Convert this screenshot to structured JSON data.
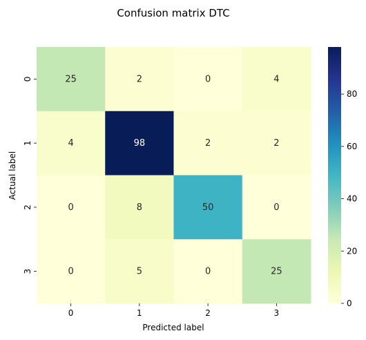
{
  "chart_data": {
    "type": "heatmap",
    "title": "Confusion matrix DTC",
    "xlabel": "Predicted label",
    "ylabel": "Actual label",
    "x_categories": [
      "0",
      "1",
      "2",
      "3"
    ],
    "y_categories": [
      "0",
      "1",
      "2",
      "3"
    ],
    "values": [
      [
        25,
        2,
        0,
        4
      ],
      [
        4,
        98,
        2,
        2
      ],
      [
        0,
        8,
        50,
        0
      ],
      [
        0,
        5,
        0,
        25
      ]
    ],
    "colormap": "YlGnBu",
    "colorbar": {
      "range": [
        0,
        98
      ],
      "ticks": [
        "0",
        "20",
        "40",
        "60",
        "80"
      ]
    },
    "colors": {
      "low": "#ffffd9",
      "high": "#081d58"
    }
  }
}
